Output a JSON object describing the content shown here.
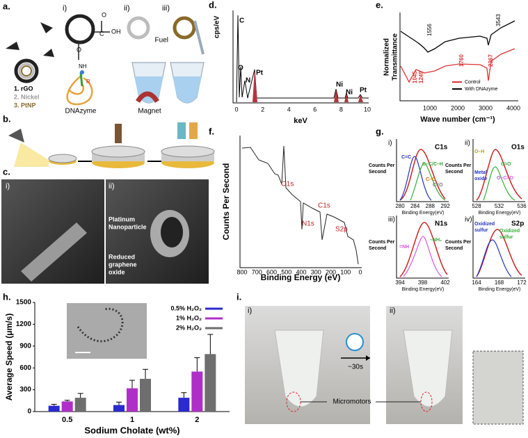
{
  "panel_a": {
    "label": "a.",
    "i": "i)",
    "ii": "ii)",
    "iii": "iii)",
    "layers": [
      "1. rGO",
      "2. Nickel",
      "3. PtNP"
    ],
    "dnazyme": "DNAzyme",
    "magnet": "Magnet",
    "fuel": "Fuel",
    "atoms": [
      "O",
      "C",
      "OH",
      "O",
      "NH",
      "R"
    ]
  },
  "panel_b": {
    "label": "b."
  },
  "panel_c": {
    "label": "c.",
    "i": "i)",
    "ii": "ii)",
    "platinum": [
      "Platinum",
      "Nanoparticle"
    ],
    "rgo": [
      "Reduced",
      "graphene",
      "oxide"
    ]
  },
  "panel_d": {
    "label": "d.",
    "ylabel": "cps/eV",
    "xlabel": "keV",
    "xticks": [
      0,
      2,
      4,
      6,
      8,
      10
    ],
    "peaks": [
      "C",
      "O",
      "N",
      "Pt",
      "Ni",
      "Ni",
      "Pt"
    ]
  },
  "panel_e": {
    "label": "e.",
    "ylabel": [
      "Normalized",
      "Transmittance"
    ],
    "xlabel": "Wave number (cm⁻¹)",
    "xticks": [
      1000,
      2000,
      3000,
      4000
    ],
    "peaks_black": [
      "1556",
      "3543"
    ],
    "peaks_red": [
      "1045",
      "1249",
      "1760",
      "2367"
    ],
    "legend": [
      "Control",
      "With DNAzyme"
    ]
  },
  "panel_f": {
    "label": "f.",
    "ylabel": "Counts Per Second",
    "xlabel": "Binding Energy (eV)",
    "xticks": [
      800,
      700,
      600,
      500,
      400,
      300,
      200,
      100,
      0
    ],
    "peaks": [
      "O1s",
      "N1s",
      "C1s",
      "S2p"
    ]
  },
  "panel_g": {
    "label": "g.",
    "ylabel": [
      "Counts Per",
      "Second"
    ],
    "xlabel": "Binding Energy(eV)",
    "subplots": [
      {
        "id": "i)",
        "title": "C1s",
        "xticks": [
          280,
          284,
          288,
          292
        ],
        "peaks": [
          "C=C",
          "C–C/C–H",
          "C–O",
          "C=O"
        ]
      },
      {
        "id": "ii)",
        "title": "O1s",
        "xticks": [
          528,
          532,
          536
        ],
        "peaks": [
          "O–H",
          "Metal",
          "oxide",
          "C=O",
          "O–C=O"
        ]
      },
      {
        "id": "iii)",
        "title": "N1s",
        "xticks": [
          394,
          398,
          402
        ],
        "peaks": [
          "=NH",
          "–NH₂"
        ]
      },
      {
        "id": "iv)",
        "title": "S2p",
        "xticks": [
          164,
          168,
          172
        ],
        "peaks": [
          "Oxidized",
          "sulfur",
          "Oxidized",
          "sulfur"
        ]
      }
    ]
  },
  "panel_h": {
    "label": "h."
  },
  "chart_data": {
    "type": "bar",
    "xlabel": "Sodium Cholate (wt%)",
    "ylabel": "Average Speed (μm/s)",
    "categories": [
      "0.5",
      "1",
      "2"
    ],
    "series": [
      {
        "name": "0.5% H₂O₂",
        "color": "#2a2ad0",
        "values": [
          80,
          90,
          190
        ],
        "errors": [
          20,
          40,
          70
        ]
      },
      {
        "name": "1% H₂O₂",
        "color": "#b02ec8",
        "values": [
          140,
          320,
          550
        ],
        "errors": [
          15,
          110,
          190
        ]
      },
      {
        "name": "2% H₂O₂",
        "color": "#6e6e6e",
        "values": [
          190,
          450,
          790
        ],
        "errors": [
          60,
          130,
          270
        ]
      }
    ],
    "ylim": [
      0,
      1500
    ],
    "yticks": [
      0,
      300,
      600,
      900,
      1200,
      1500
    ]
  },
  "panel_i": {
    "label": "i.",
    "i": "i)",
    "ii": "ii)",
    "time": "~30s",
    "micromotors": "Micromotors"
  }
}
